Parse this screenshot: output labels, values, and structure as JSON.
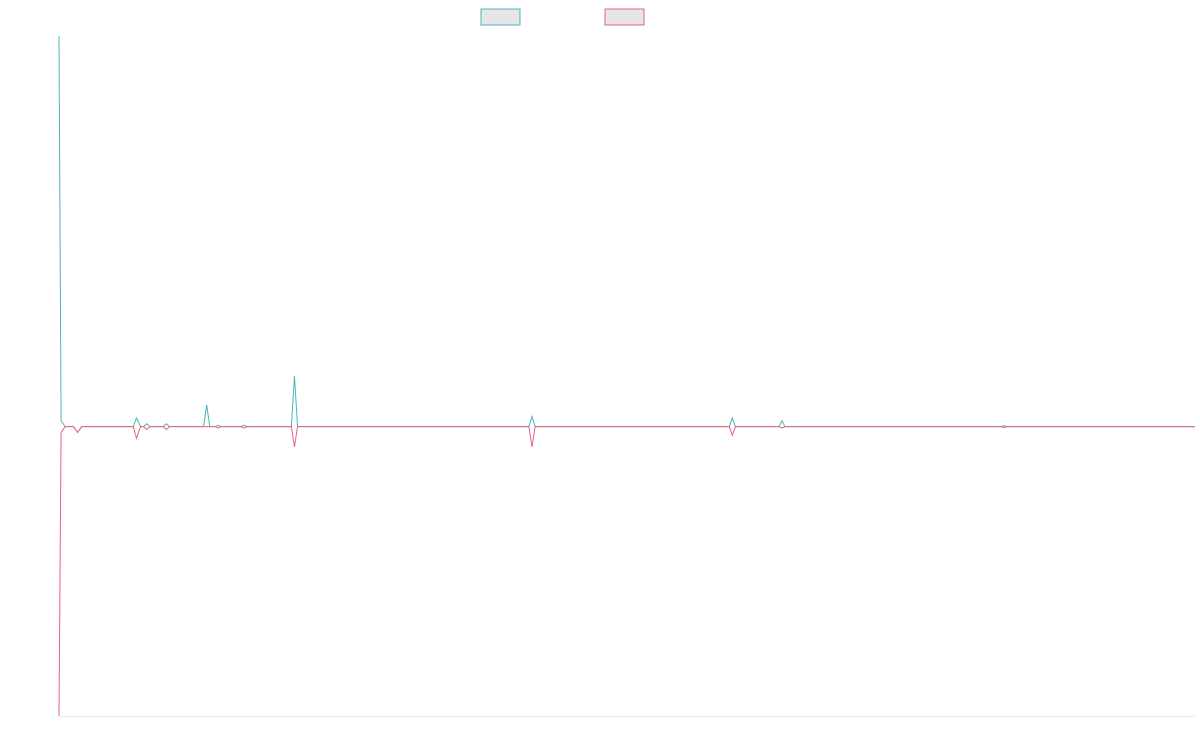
{
  "chart_data": {
    "type": "line",
    "title": "",
    "xlabel": "",
    "ylabel": "",
    "x_range": [
      0,
      1100
    ],
    "ylim": [
      -1.0,
      1.35
    ],
    "grid": false,
    "legend_position": "top-center",
    "series": [
      {
        "color": "#4bb3bd",
        "fill": "#e6e6e6",
        "points": [
          [
            0,
            1.35
          ],
          [
            2,
            0.02
          ],
          [
            6,
            0.0
          ],
          [
            14,
            0.0
          ],
          [
            18,
            -0.02
          ],
          [
            22,
            0.0
          ],
          [
            72,
            0.0
          ],
          [
            75,
            0.03
          ],
          [
            79,
            0.0
          ],
          [
            82,
            0.0
          ],
          [
            85,
            0.01
          ],
          [
            88,
            0.0
          ],
          [
            101,
            0.0
          ],
          [
            104,
            0.01
          ],
          [
            107,
            0.0
          ],
          [
            140,
            0.0
          ],
          [
            143,
            0.075
          ],
          [
            146,
            0.0
          ],
          [
            152,
            0.0
          ],
          [
            154,
            0.005
          ],
          [
            157,
            0.0
          ],
          [
            176,
            0.0
          ],
          [
            179,
            0.005
          ],
          [
            182,
            0.0
          ],
          [
            225,
            0.0
          ],
          [
            228,
            0.175
          ],
          [
            231,
            0.0
          ],
          [
            455,
            0.0
          ],
          [
            458,
            0.035
          ],
          [
            461,
            0.0
          ],
          [
            649,
            0.0
          ],
          [
            652,
            0.03
          ],
          [
            655,
            0.0
          ],
          [
            697,
            0.0
          ],
          [
            700,
            0.02
          ],
          [
            703,
            0.0
          ],
          [
            912,
            0.0
          ],
          [
            915,
            0.003
          ],
          [
            918,
            0.0
          ],
          [
            1100,
            0.0
          ]
        ]
      },
      {
        "color": "#e8617f",
        "fill": "#e6e6e6",
        "points": [
          [
            0,
            -1.0
          ],
          [
            2,
            -0.02
          ],
          [
            6,
            0.0
          ],
          [
            14,
            0.0
          ],
          [
            18,
            -0.02
          ],
          [
            22,
            0.0
          ],
          [
            72,
            0.0
          ],
          [
            75,
            -0.04
          ],
          [
            79,
            0.0
          ],
          [
            82,
            0.0
          ],
          [
            85,
            -0.01
          ],
          [
            88,
            0.0
          ],
          [
            101,
            0.0
          ],
          [
            104,
            -0.01
          ],
          [
            107,
            0.0
          ],
          [
            152,
            0.0
          ],
          [
            154,
            -0.005
          ],
          [
            157,
            0.0
          ],
          [
            176,
            0.0
          ],
          [
            179,
            -0.005
          ],
          [
            182,
            0.0
          ],
          [
            225,
            0.0
          ],
          [
            228,
            -0.07
          ],
          [
            231,
            0.0
          ],
          [
            455,
            0.0
          ],
          [
            458,
            -0.07
          ],
          [
            461,
            0.0
          ],
          [
            649,
            0.0
          ],
          [
            652,
            -0.03
          ],
          [
            655,
            0.0
          ],
          [
            697,
            0.0
          ],
          [
            700,
            -0.005
          ],
          [
            703,
            0.0
          ],
          [
            912,
            0.0
          ],
          [
            915,
            -0.003
          ],
          [
            918,
            0.0
          ],
          [
            1100,
            0.0
          ]
        ]
      }
    ]
  }
}
